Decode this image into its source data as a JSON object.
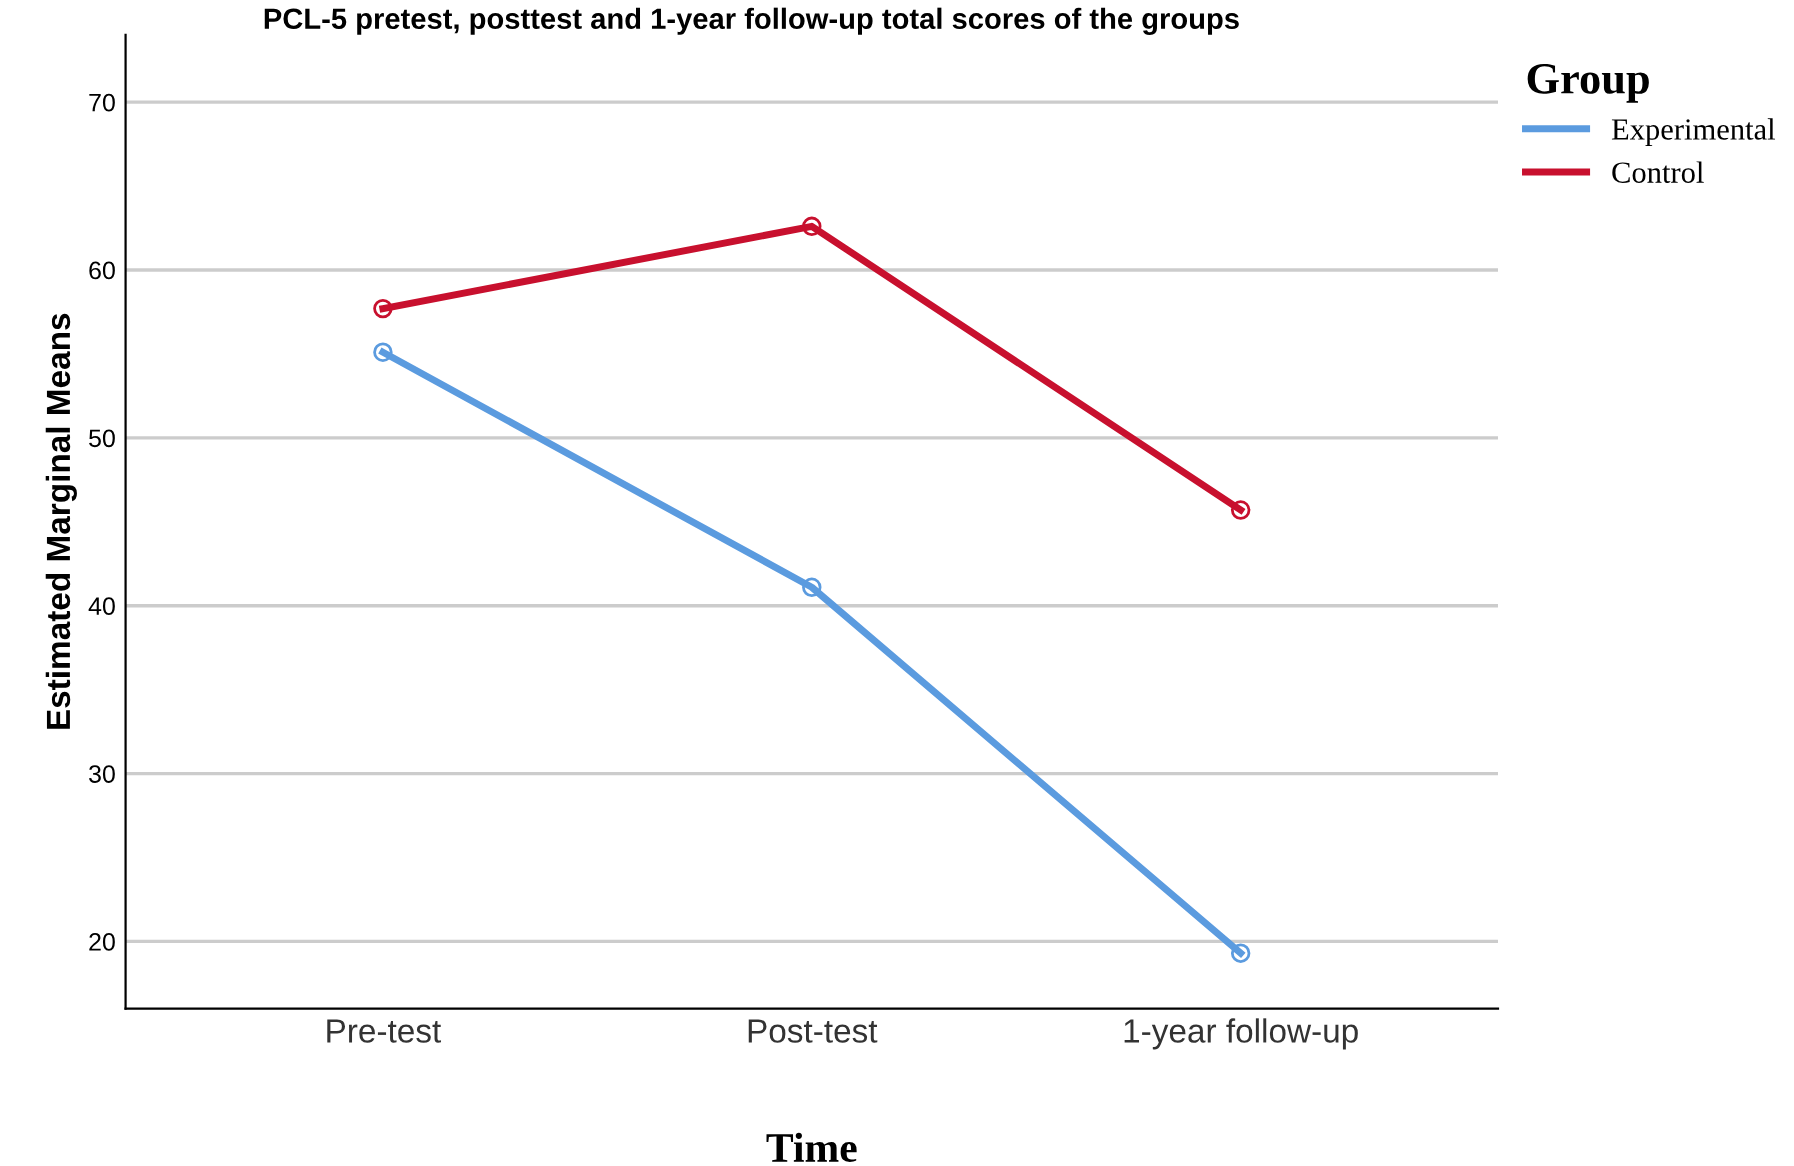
{
  "chart_data": {
    "type": "line",
    "title": "PCL-5 pretest, posttest and 1-year follow-up total scores of the groups",
    "xlabel": "Time",
    "ylabel": "Estimated Marginal Means",
    "legend_title": "Group",
    "categories": [
      "Pre-test",
      "Post-test",
      "1-year follow-up"
    ],
    "series": [
      {
        "name": "Experimental",
        "color": "#5b9bdf",
        "values": [
          55.1,
          41.1,
          19.3
        ]
      },
      {
        "name": "Control",
        "color": "#c8102e",
        "values": [
          57.7,
          62.6,
          45.7
        ]
      }
    ],
    "ylim": [
      16,
      74
    ],
    "yticks": [
      20,
      30,
      40,
      50,
      60,
      70
    ],
    "grid": "y",
    "legend": "top right",
    "marker": "circle",
    "line_style": "solid"
  }
}
